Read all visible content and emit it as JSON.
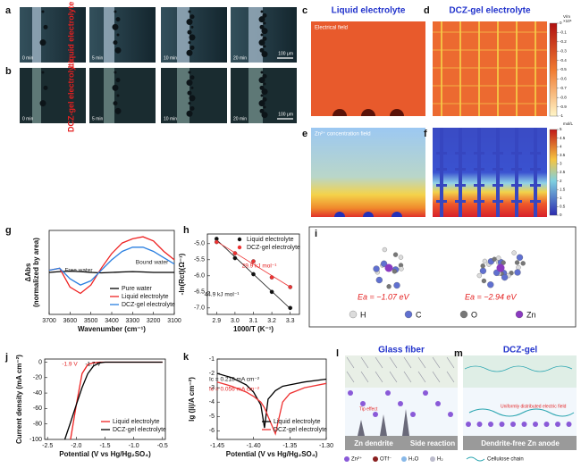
{
  "panels": {
    "letters": [
      "a",
      "b",
      "c",
      "d",
      "e",
      "f",
      "g",
      "h",
      "i",
      "j",
      "k",
      "l",
      "m"
    ],
    "a": {
      "times": [
        "0 min",
        "5 min",
        "10 min",
        "20 min"
      ],
      "label": "Liquid electrolyte",
      "scale": "100 μm"
    },
    "b": {
      "times": [
        "0 min",
        "5 min",
        "10 min",
        "20 min"
      ],
      "label": "DCZ-gel electrolyte",
      "scale": "100 μm"
    },
    "c": {
      "title": "Liquid electrolyte",
      "field": "Electrical field"
    },
    "d": {
      "title": "DCZ-gel electrolyte",
      "unit": "V/m",
      "multiplier": "×10⁶",
      "ticks": [
        0,
        -0.1,
        -0.2,
        -0.3,
        -0.4,
        -0.5,
        -0.6,
        -0.7,
        -0.8,
        -0.9,
        -1
      ]
    },
    "e": {
      "field": "Zn²⁺ concentration field"
    },
    "f": {
      "unit": "mol/L",
      "ticks": [
        5,
        4.5,
        4,
        3.5,
        3,
        2.5,
        2,
        1.5,
        1,
        0.5,
        0
      ]
    },
    "i": {
      "energies": [
        "Ea = −1.07 eV",
        "Ea = −2.94 eV"
      ],
      "atoms": [
        "H",
        "C",
        "O",
        "Zn"
      ]
    },
    "l": {
      "title": "Glass fiber",
      "note": "Tip effect",
      "labels": [
        "Zn dendrite",
        "Side reaction"
      ]
    },
    "m": {
      "title": "DCZ-gel",
      "note": "Uniformly distributed electric field",
      "label": "Dendrite-free Zn anode"
    },
    "legend": [
      "Zn²⁺",
      "OTf⁻",
      "H₂O",
      "H₂",
      "Cellulose chain"
    ]
  },
  "chart_data": [
    {
      "type": "line",
      "x_label": "Wavenumber (cm⁻¹)",
      "y_label": [
        "ΔAbs",
        "(normalized by area)"
      ],
      "x": [
        3700,
        3650,
        3600,
        3550,
        3500,
        3450,
        3400,
        3350,
        3300,
        3250,
        3200,
        3150,
        3100
      ],
      "xlim": [
        3700,
        3100
      ],
      "xticks": [
        3700,
        3600,
        3500,
        3400,
        3300,
        3200,
        3100
      ],
      "ylim": [
        -1,
        1
      ],
      "series": [
        {
          "name": "Pure water",
          "color": "#000000",
          "values": [
            0,
            0.02,
            0.03,
            0.02,
            0,
            -0.01,
            0,
            0.01,
            0.02,
            0.01,
            0,
            0,
            0
          ]
        },
        {
          "name": "Liquid electrolyte",
          "color": "#ee2222",
          "values": [
            0.05,
            0.1,
            -0.35,
            -0.5,
            -0.3,
            0.1,
            0.45,
            0.7,
            0.8,
            0.85,
            0.75,
            0.5,
            0.3
          ]
        },
        {
          "name": "DCZ-gel electrolyte",
          "color": "#2a7fe0",
          "values": [
            0.05,
            0.1,
            -0.15,
            -0.3,
            -0.2,
            0.05,
            0.3,
            0.5,
            0.6,
            0.6,
            0.5,
            0.35,
            0.2
          ]
        }
      ],
      "annotations": [
        "Free water",
        "Bound water"
      ],
      "legend": "lower right"
    },
    {
      "type": "scatter",
      "x_label": "1000/T (K⁻¹)",
      "y_label": [
        "-ln(Rct)(Ω⁻¹)"
      ],
      "x": [
        2.9,
        3.0,
        3.1,
        3.2,
        3.3
      ],
      "xlim": [
        2.85,
        3.35
      ],
      "xticks": [
        2.9,
        {
          "value": 3,
          "label": "3.0"
        },
        3.1,
        3.2,
        3.3
      ],
      "ylim": [
        -7.2,
        -4.7
      ],
      "yticks": [
        {
          "value": -5,
          "label": "-5.0"
        },
        -5.5,
        {
          "value": -6,
          "label": "-6.0"
        },
        -6.5,
        {
          "value": -7,
          "label": "-7.0"
        }
      ],
      "series": [
        {
          "name": "Liquid electrolyte",
          "color": "#111111",
          "values": [
            -4.85,
            -5.45,
            -5.95,
            -6.5,
            -7.0
          ]
        },
        {
          "name": "DCZ-gel electrolyte",
          "color": "#ee3333",
          "values": [
            -4.95,
            -5.3,
            -5.55,
            -6.05,
            -6.35
          ]
        }
      ],
      "fit": true,
      "annotations": [
        "29.9 kJ mol⁻¹",
        "44.9 kJ mol⁻¹"
      ],
      "legend": "upper right"
    },
    {
      "type": "line",
      "x_label": "Potential (V vs Hg/Hg₂SO₄)",
      "y_label": [
        "Current density (mA cm⁻²)"
      ],
      "x": [
        -2.3,
        -2.2,
        -2.1,
        -2.0,
        -1.9,
        -1.8,
        -1.7,
        -1.6,
        -1.5,
        -1.0,
        -0.5
      ],
      "xlim": [
        -2.55,
        -0.45
      ],
      "xticks": [
        -2.5,
        {
          "value": -2,
          "label": "-2.0"
        },
        -1.5,
        {
          "value": -1,
          "label": "-1.0"
        },
        -0.5
      ],
      "ylim": [
        -100,
        4
      ],
      "yticks": [
        0,
        -20,
        -40,
        -60,
        -80,
        -100
      ],
      "series": [
        {
          "name": "Liquid electrolyte",
          "color": "#ee2222",
          "values": [
            null,
            null,
            -100,
            -55,
            -15,
            -3,
            -1,
            0,
            0,
            0,
            0
          ]
        },
        {
          "name": "DCZ-gel electrolyte",
          "color": "#000000",
          "values": [
            null,
            -100,
            -78,
            -55,
            -33,
            -15,
            -5,
            -1,
            0,
            0,
            0
          ]
        }
      ],
      "annotations": [
        "-1.9 V",
        "-1.7 V"
      ],
      "legend": "lower right"
    },
    {
      "type": "line",
      "x_label": "Potential (V vs Hg/Hg₂SO₄)",
      "y_label": [
        "lg (|i|/A cm⁻²)"
      ],
      "x": [
        -1.45,
        -1.43,
        -1.41,
        -1.4,
        -1.39,
        -1.385,
        -1.38,
        -1.37,
        -1.36,
        -1.35,
        -1.33,
        -1.3
      ],
      "xlim": [
        -1.45,
        -1.3
      ],
      "xticks": [
        -1.45,
        {
          "value": -1.4,
          "label": "-1.40"
        },
        -1.35,
        {
          "value": -1.3,
          "label": "-1.30"
        }
      ],
      "ylim": [
        -6.6,
        -1
      ],
      "yticks": [
        -1,
        -2,
        -3,
        -4,
        -5,
        -6
      ],
      "series": [
        {
          "name": "Liquid electrolyte",
          "color": "#000000",
          "values": [
            -2.0,
            -2.3,
            -2.8,
            -3.3,
            -4.2,
            -5.8,
            -3.8,
            -3.2,
            -2.9,
            -2.8,
            -2.6,
            -2.4
          ]
        },
        {
          "name": "DCZ-gel electrolyte",
          "color": "#ee3333",
          "values": [
            -2.6,
            -2.9,
            -3.3,
            -3.6,
            -4.0,
            -4.4,
            -5.0,
            -6.2,
            -4.0,
            -3.4,
            -3.0,
            -2.7
          ]
        }
      ],
      "annotations": [
        "Ic = 0.218 mA cm⁻²",
        "Ic = 0.056 mA cm⁻²"
      ],
      "legend": "lower right"
    }
  ]
}
